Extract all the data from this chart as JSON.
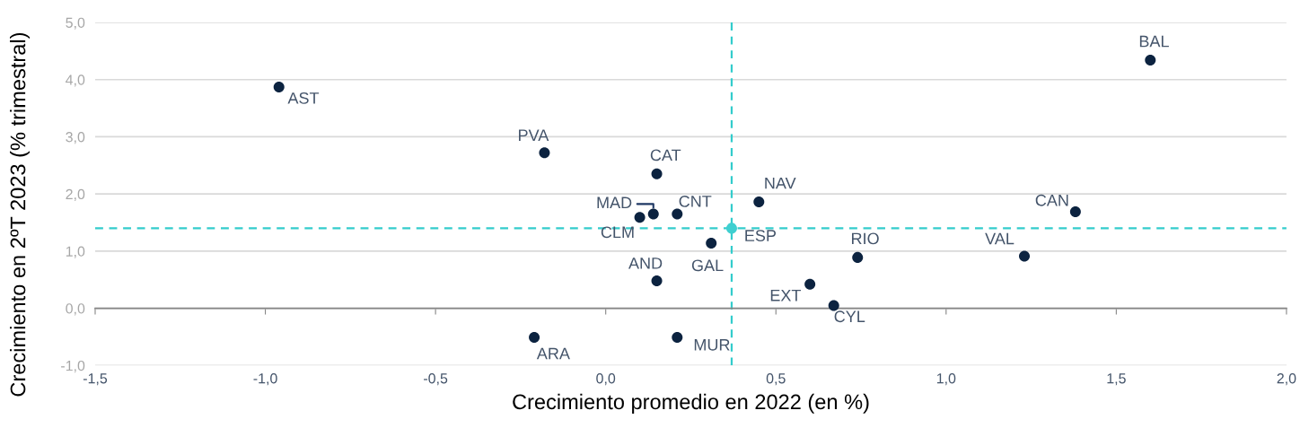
{
  "chart_data": {
    "type": "scatter",
    "xlabel": "Crecimiento promedio en 2022 (en %)",
    "ylabel": "Crecimiento en 2ºT 2023 (% trimestral)",
    "xlim": [
      -1.5,
      2.0
    ],
    "ylim": [
      -1.0,
      5.0
    ],
    "xticks": [
      {
        "value": -1.5,
        "label": "-1,5"
      },
      {
        "value": -1.0,
        "label": "-1,0"
      },
      {
        "value": -0.5,
        "label": "-0,5"
      },
      {
        "value": 0.0,
        "label": "0,0"
      },
      {
        "value": 0.5,
        "label": "0,5"
      },
      {
        "value": 1.0,
        "label": "1,0"
      },
      {
        "value": 1.5,
        "label": "1,5"
      },
      {
        "value": 2.0,
        "label": "2,0"
      }
    ],
    "yticks": [
      {
        "value": -1.0,
        "label": "-1,0"
      },
      {
        "value": 0.0,
        "label": "0,0"
      },
      {
        "value": 1.0,
        "label": "1,0"
      },
      {
        "value": 2.0,
        "label": "2,0"
      },
      {
        "value": 3.0,
        "label": "3,0"
      },
      {
        "value": 4.0,
        "label": "4,0"
      },
      {
        "value": 5.0,
        "label": "5,0"
      }
    ],
    "grid": "y",
    "marker": "circle",
    "series": [
      {
        "name": "AST",
        "color": "#0c2340",
        "x": [
          -0.96
        ],
        "values": [
          3.87
        ]
      },
      {
        "name": "BAL",
        "color": "#0c2340",
        "x": [
          1.6
        ],
        "values": [
          4.34
        ]
      },
      {
        "name": "PVA",
        "color": "#0c2340",
        "x": [
          -0.18
        ],
        "values": [
          2.72
        ]
      },
      {
        "name": "CAT",
        "color": "#0c2340",
        "x": [
          0.15
        ],
        "values": [
          2.35
        ]
      },
      {
        "name": "NAV",
        "color": "#0c2340",
        "x": [
          0.45
        ],
        "values": [
          1.86
        ]
      },
      {
        "name": "CAN",
        "color": "#0c2340",
        "x": [
          1.38
        ],
        "values": [
          1.69
        ]
      },
      {
        "name": "MAD",
        "color": "#0c2340",
        "x": [
          0.14
        ],
        "values": [
          1.65
        ]
      },
      {
        "name": "CNT",
        "color": "#0c2340",
        "x": [
          0.21
        ],
        "values": [
          1.65
        ]
      },
      {
        "name": "CLM",
        "color": "#0c2340",
        "x": [
          0.1
        ],
        "values": [
          1.59
        ]
      },
      {
        "name": "ESP",
        "color": "#3fcfd0",
        "x": [
          0.37
        ],
        "values": [
          1.4
        ]
      },
      {
        "name": "GAL",
        "color": "#0c2340",
        "x": [
          0.31
        ],
        "values": [
          1.14
        ]
      },
      {
        "name": "RIO",
        "color": "#0c2340",
        "x": [
          0.74
        ],
        "values": [
          0.89
        ]
      },
      {
        "name": "VAL",
        "color": "#0c2340",
        "x": [
          1.23
        ],
        "values": [
          0.91
        ]
      },
      {
        "name": "AND",
        "color": "#0c2340",
        "x": [
          0.15
        ],
        "values": [
          0.48
        ]
      },
      {
        "name": "EXT",
        "color": "#0c2340",
        "x": [
          0.6
        ],
        "values": [
          0.42
        ]
      },
      {
        "name": "CYL",
        "color": "#0c2340",
        "x": [
          0.67
        ],
        "values": [
          0.05
        ]
      },
      {
        "name": "ARA",
        "color": "#0c2340",
        "x": [
          -0.21
        ],
        "values": [
          -0.51
        ]
      },
      {
        "name": "MUR",
        "color": "#0c2340",
        "x": [
          0.21
        ],
        "values": [
          -0.51
        ]
      }
    ],
    "ref_lines": [
      {
        "axis": "x",
        "value": 0.37,
        "color": "#33cccc",
        "line_style": "dashed"
      },
      {
        "axis": "y",
        "value": 1.4,
        "color": "#33cccc",
        "line_style": "dashed"
      }
    ]
  }
}
